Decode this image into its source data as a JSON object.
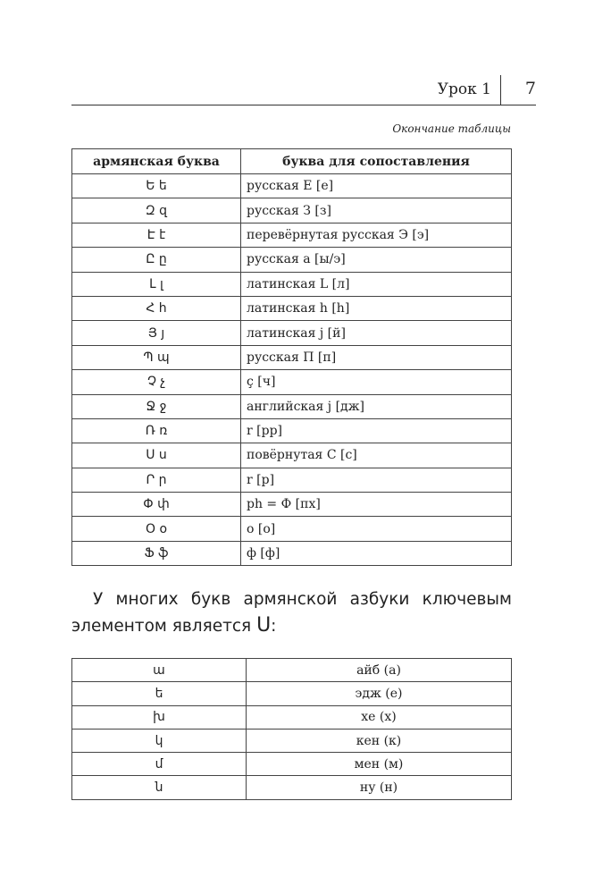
{
  "header": {
    "title": "Урок 1",
    "page_number": "7"
  },
  "caption": "Окончание таблицы",
  "table1": {
    "headers": [
      "армянская буква",
      "буква для сопоставления"
    ],
    "rows": [
      [
        "Ե ե",
        "русская Е [е]"
      ],
      [
        "Զ զ",
        "русская З [з]"
      ],
      [
        "Է է",
        "перевёрнутая русская Э [э]"
      ],
      [
        "Ը ը",
        "русская а [ы/э]"
      ],
      [
        "Լ լ",
        "латинская L [л]"
      ],
      [
        "Հ հ",
        "латинская h [h]"
      ],
      [
        "Յ յ",
        "латинская j [й]"
      ],
      [
        "Պ պ",
        "русская П [п]"
      ],
      [
        "Չ չ",
        "ç [ч]"
      ],
      [
        "Ջ ջ",
        "английская j [дж]"
      ],
      [
        "Ռ ռ",
        "r [рр]"
      ],
      [
        "Ս ս",
        "повёрнутая С [с]"
      ],
      [
        "Ր ր",
        "r [р]"
      ],
      [
        "Փ փ",
        "ph = Ф [пх]"
      ],
      [
        "Օ օ",
        "о [о]"
      ],
      [
        "Ֆ ֆ",
        "ф [ф]"
      ]
    ]
  },
  "paragraph": {
    "text": "У многих букв армянской азбуки ключевым элементом является ",
    "key_letter": "Ս",
    "end": ":"
  },
  "table2": {
    "rows": [
      [
        "ա",
        "айб (а)"
      ],
      [
        "ե",
        "эдж (е)"
      ],
      [
        "խ",
        "хе (х)"
      ],
      [
        "կ",
        "кен (к)"
      ],
      [
        "մ",
        "мен (м)"
      ],
      [
        "ն",
        "ну (н)"
      ]
    ]
  }
}
